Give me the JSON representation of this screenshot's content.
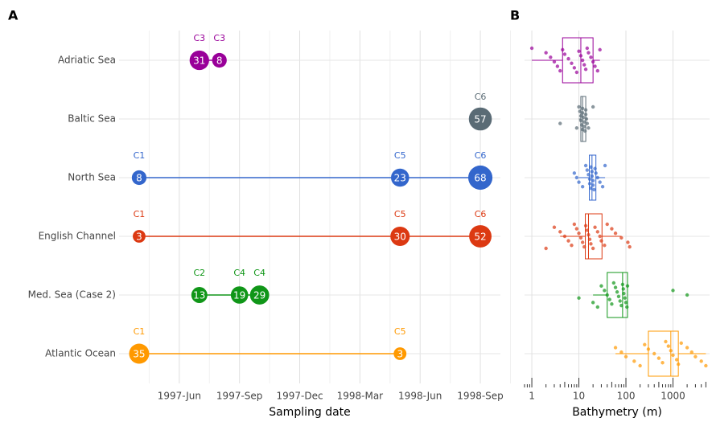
{
  "chart_data": [
    {
      "type": "timeline",
      "title": "A",
      "xlabel": "Sampling date",
      "xlim": [
        "1997-03",
        "1998-10"
      ],
      "xticks": [
        {
          "value": "1997-06",
          "label": "1997-Jun"
        },
        {
          "value": "1997-09",
          "label": "1997-Sep"
        },
        {
          "value": "1997-12",
          "label": "1997-Dec"
        },
        {
          "value": "1998-03",
          "label": "1998-Mar"
        },
        {
          "value": "1998-06",
          "label": "1998-Jun"
        },
        {
          "value": "1998-09",
          "label": "1998-Sep"
        }
      ],
      "grid": true,
      "series": [
        {
          "name": "Adriatic Sea",
          "color": "#990099",
          "x": [
            "1997-07",
            "1997-08"
          ],
          "values": [
            31,
            8
          ],
          "labels": [
            "C3",
            "C3"
          ]
        },
        {
          "name": "Baltic Sea",
          "color": "#5a6b75",
          "x": [
            "1998-09"
          ],
          "values": [
            57
          ],
          "labels": [
            "C6"
          ]
        },
        {
          "name": "North Sea",
          "color": "#3366cc",
          "x": [
            "1997-04",
            "1998-05",
            "1998-09"
          ],
          "values": [
            8,
            23,
            68
          ],
          "labels": [
            "C1",
            "C5",
            "C6"
          ]
        },
        {
          "name": "English Channel",
          "color": "#dc3912",
          "x": [
            "1997-04",
            "1998-05",
            "1998-09"
          ],
          "values": [
            3,
            30,
            52
          ],
          "labels": [
            "C1",
            "C5",
            "C6"
          ]
        },
        {
          "name": "Med. Sea (Case 2)",
          "color": "#109618",
          "x": [
            "1997-07",
            "1997-09",
            "1997-10"
          ],
          "values": [
            13,
            19,
            29
          ],
          "labels": [
            "C2",
            "C4",
            "C4"
          ]
        },
        {
          "name": "Atlantic Ocean",
          "color": "#ff9900",
          "x": [
            "1997-04",
            "1998-05"
          ],
          "values": [
            35,
            3
          ],
          "labels": [
            "C1",
            "C5"
          ]
        }
      ]
    },
    {
      "type": "box",
      "title": "B",
      "xlabel": "Bathymetry (m)",
      "log_x": true,
      "xlim": [
        0.7,
        6000
      ],
      "xticks": [
        1,
        10,
        100,
        1000
      ],
      "grid": true,
      "boxes": [
        {
          "color": "#990099",
          "min": 1,
          "q1": 4.5,
          "median": 11,
          "q3": 20,
          "max": 28,
          "points": [
            1,
            2,
            2.5,
            3,
            3.5,
            4,
            4.5,
            5,
            6,
            7,
            8,
            9,
            10,
            11,
            12,
            13,
            14,
            15,
            16,
            18,
            20,
            22,
            25,
            28
          ]
        },
        {
          "color": "#5a6b75",
          "min": 10,
          "q1": 11,
          "median": 12,
          "q3": 14,
          "max": 15,
          "points": [
            4,
            9,
            10,
            10.5,
            11,
            11,
            11.5,
            12,
            12,
            12,
            12.5,
            13,
            13,
            13.5,
            14,
            14,
            14.5,
            15,
            16,
            20
          ]
        },
        {
          "color": "#3366cc",
          "min": 10,
          "q1": 16.7,
          "median": 19,
          "q3": 23,
          "max": 36,
          "points": [
            8,
            9,
            10,
            12,
            14,
            15,
            16,
            17,
            17,
            18,
            18,
            19,
            19,
            20,
            20,
            21,
            22,
            23,
            25,
            28,
            32,
            36
          ]
        },
        {
          "color": "#dc3912",
          "min": 4,
          "q1": 13.7,
          "median": 16,
          "q3": 31,
          "max": 80,
          "points": [
            2,
            3,
            4,
            5,
            6,
            7,
            8,
            9,
            10,
            11,
            12,
            13,
            14,
            15,
            16,
            17,
            18,
            20,
            22,
            25,
            28,
            30,
            35,
            40,
            50,
            60,
            80,
            110,
            120
          ]
        },
        {
          "color": "#109618",
          "min": 20,
          "q1": 40,
          "median": 85,
          "q3": 108,
          "max": 108,
          "points": [
            10,
            20,
            25,
            30,
            35,
            40,
            45,
            50,
            55,
            60,
            65,
            70,
            75,
            80,
            85,
            88,
            90,
            95,
            100,
            105,
            108,
            1000,
            2000
          ]
        },
        {
          "color": "#ff9900",
          "min": 60,
          "q1": 300,
          "median": 900,
          "q3": 1300,
          "max": 5000,
          "points": [
            60,
            80,
            100,
            150,
            200,
            250,
            300,
            400,
            500,
            600,
            700,
            800,
            900,
            1000,
            1200,
            1300,
            1500,
            2000,
            2500,
            3000,
            4000,
            5000
          ]
        }
      ]
    }
  ]
}
